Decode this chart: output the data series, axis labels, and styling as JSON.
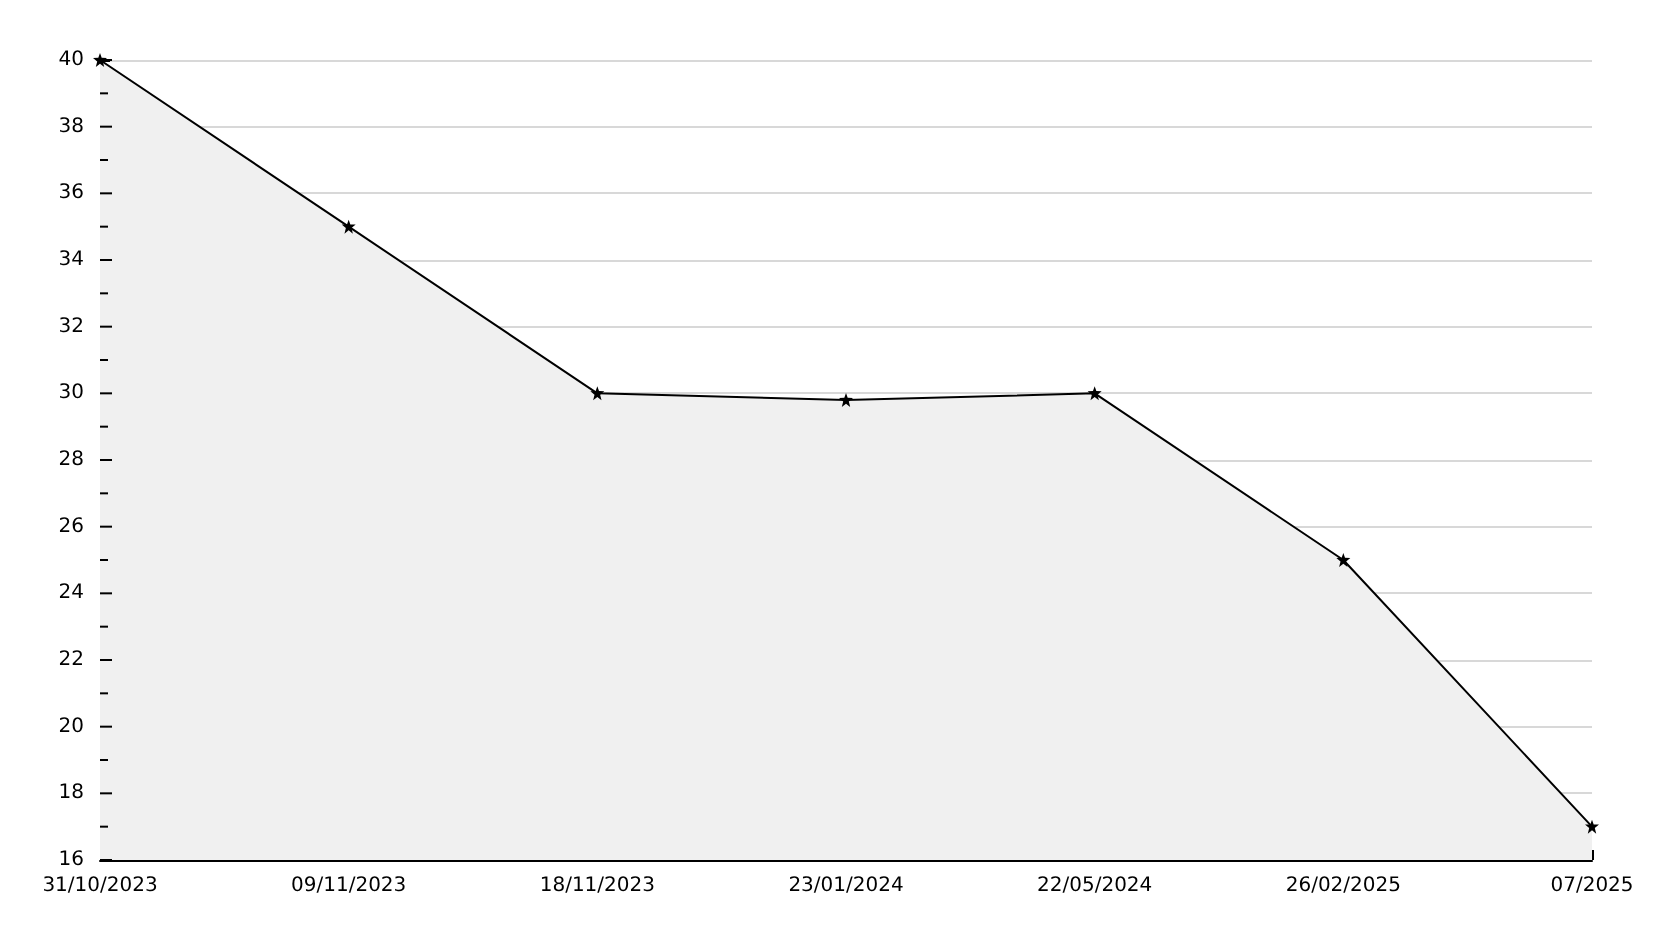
{
  "chart_data": {
    "type": "area",
    "categories": [
      "31/10/2023",
      "09/11/2023",
      "18/11/2023",
      "23/01/2024",
      "22/05/2024",
      "26/02/2025",
      "07/2025"
    ],
    "series": [
      {
        "color": "#000000",
        "values": [
          40,
          35,
          30,
          29.8,
          30,
          25,
          17
        ]
      }
    ],
    "ylim": [
      16,
      40
    ],
    "yticks": [
      16,
      {
        "value": 17,
        "label": null
      },
      18,
      {
        "value": 19,
        "label": null
      },
      20,
      {
        "value": 21,
        "label": null
      },
      22,
      {
        "value": 23,
        "label": null
      },
      24,
      {
        "value": 25,
        "label": null
      },
      26,
      {
        "value": 27,
        "label": null
      },
      28,
      {
        "value": 29,
        "label": null
      },
      30,
      {
        "value": 31,
        "label": null
      },
      32,
      {
        "value": 33,
        "label": null
      },
      34,
      {
        "value": 35,
        "label": null
      },
      36,
      {
        "value": 37,
        "label": null
      },
      38,
      {
        "value": 39,
        "label": null
      },
      40
    ],
    "grid": "y",
    "marker": "star",
    "line_style": "solid"
  }
}
